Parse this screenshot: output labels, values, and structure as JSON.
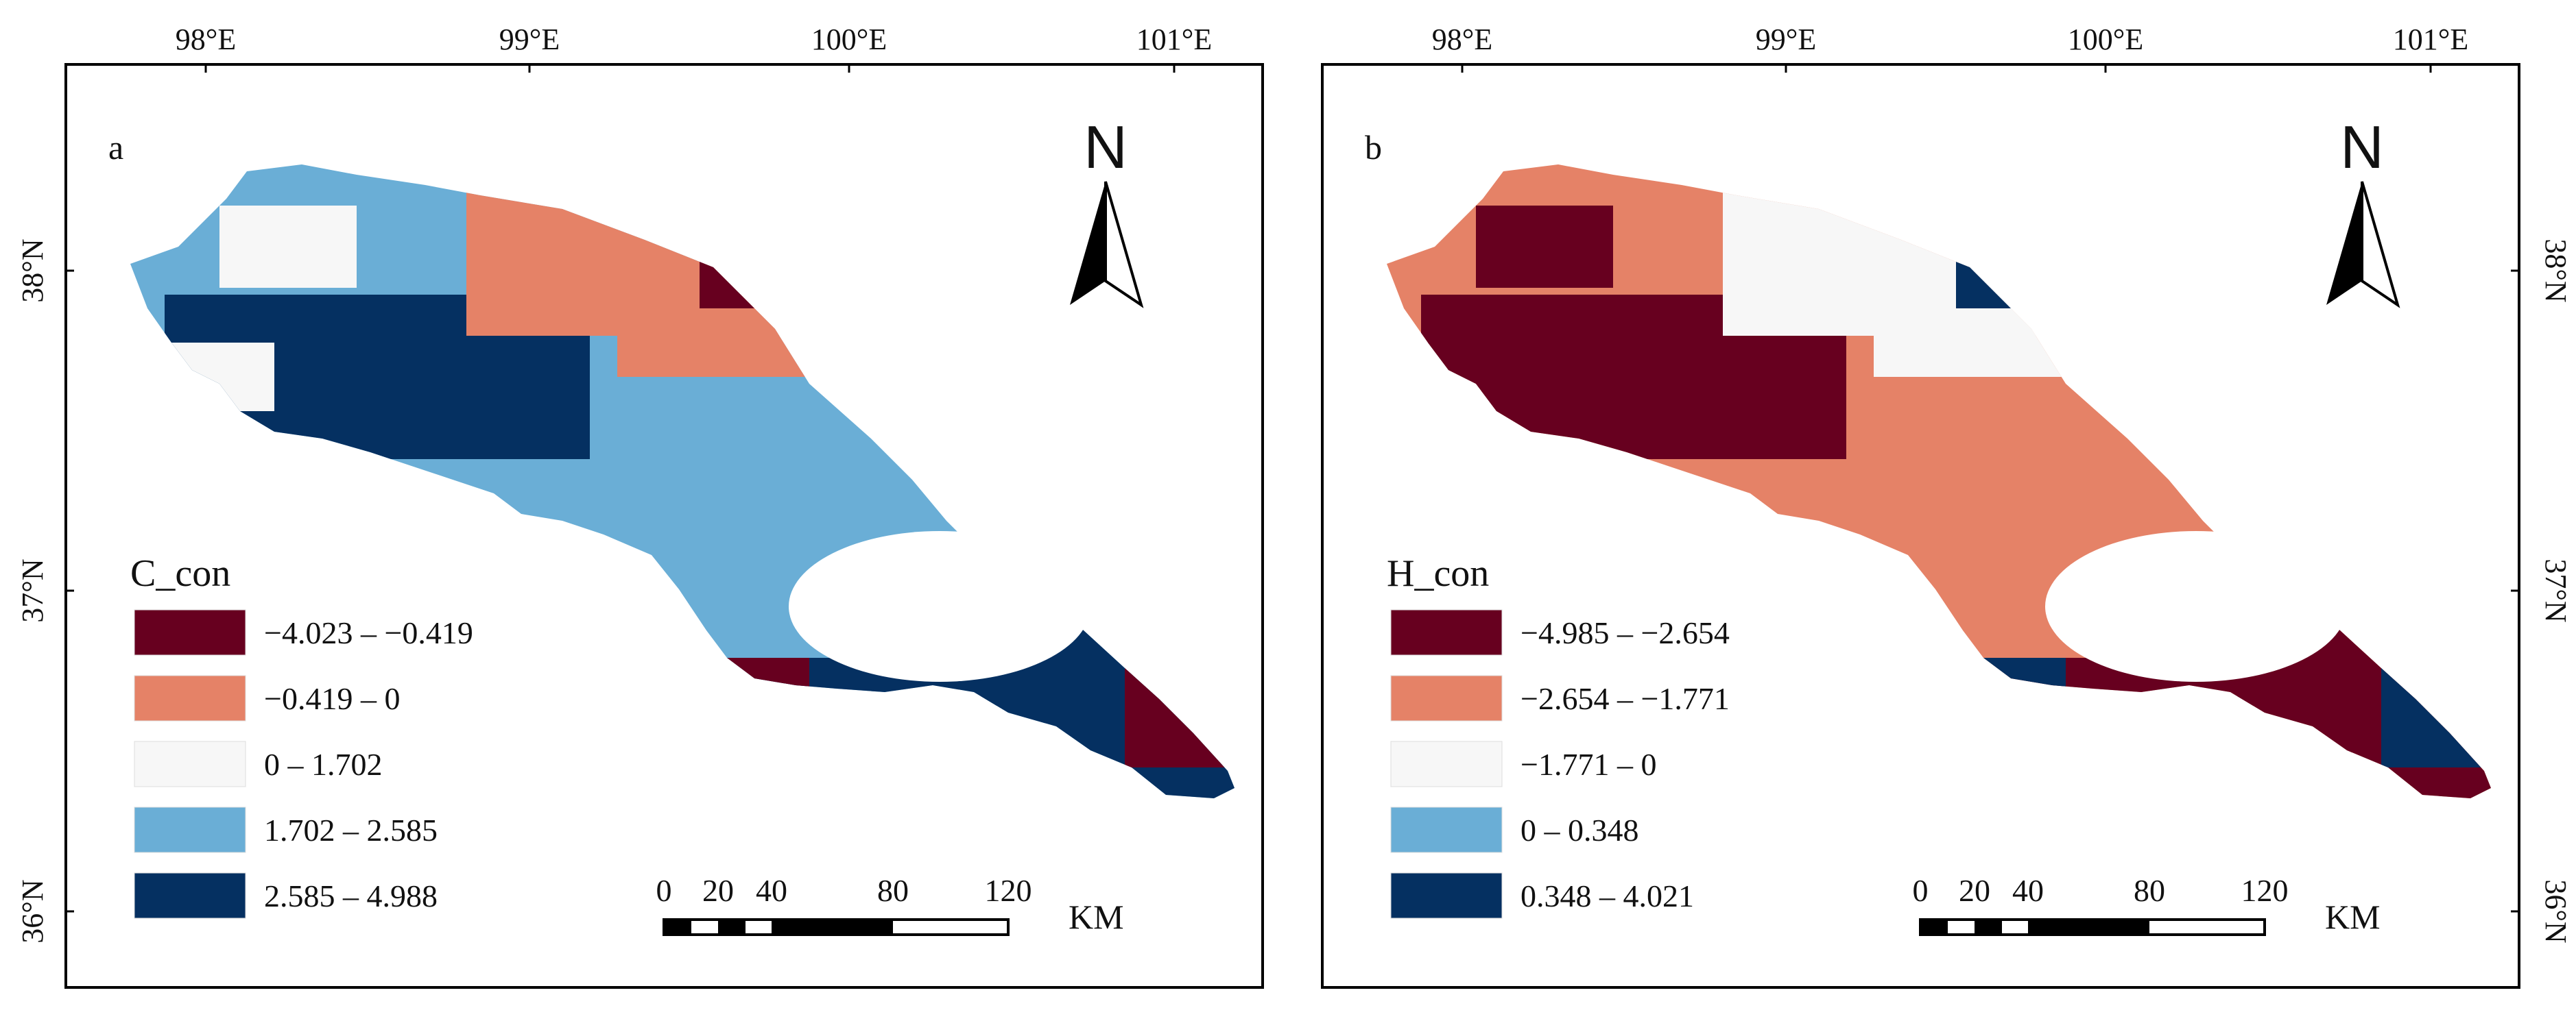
{
  "lon_ticks": [
    "98°E",
    "99°E",
    "100°E",
    "101°E"
  ],
  "lat_ticks": [
    "38°N",
    "37°N",
    "36°N"
  ],
  "scale_bar": {
    "ticks": [
      "0",
      "20",
      "40",
      "80",
      "120"
    ],
    "unit": "KM"
  },
  "north_label": "N",
  "panels": [
    {
      "letter": "a",
      "legend_title": "C_con",
      "classes": [
        {
          "label": "−4.023 – −0.419",
          "color": "#67001f"
        },
        {
          "label": "−0.419 – 0",
          "color": "#e58267"
        },
        {
          "label": " 0 – 1.702",
          "color": "#f7f7f7"
        },
        {
          "label": "1.702 – 2.585",
          "color": "#6aaed6"
        },
        {
          "label": "2.585 – 4.988",
          "color": "#053061"
        }
      ],
      "region_fill": "#6aaed6",
      "patches": [
        "#053061",
        "#e58267",
        "#67001f",
        "#f7f7f7"
      ]
    },
    {
      "letter": "b",
      "legend_title": "H_con",
      "classes": [
        {
          "label": "−4.985 – −2.654",
          "color": "#67001f"
        },
        {
          "label": "−2.654 – −1.771",
          "color": "#e58267"
        },
        {
          "label": "−1.771 – 0",
          "color": "#f7f7f7"
        },
        {
          "label": "0 – 0.348",
          "color": "#6aaed6"
        },
        {
          "label": "0.348 – 4.021",
          "color": "#053061"
        }
      ],
      "region_fill": "#e58267",
      "patches": [
        "#67001f",
        "#f7f7f7",
        "#053061",
        "#67001f"
      ]
    }
  ]
}
